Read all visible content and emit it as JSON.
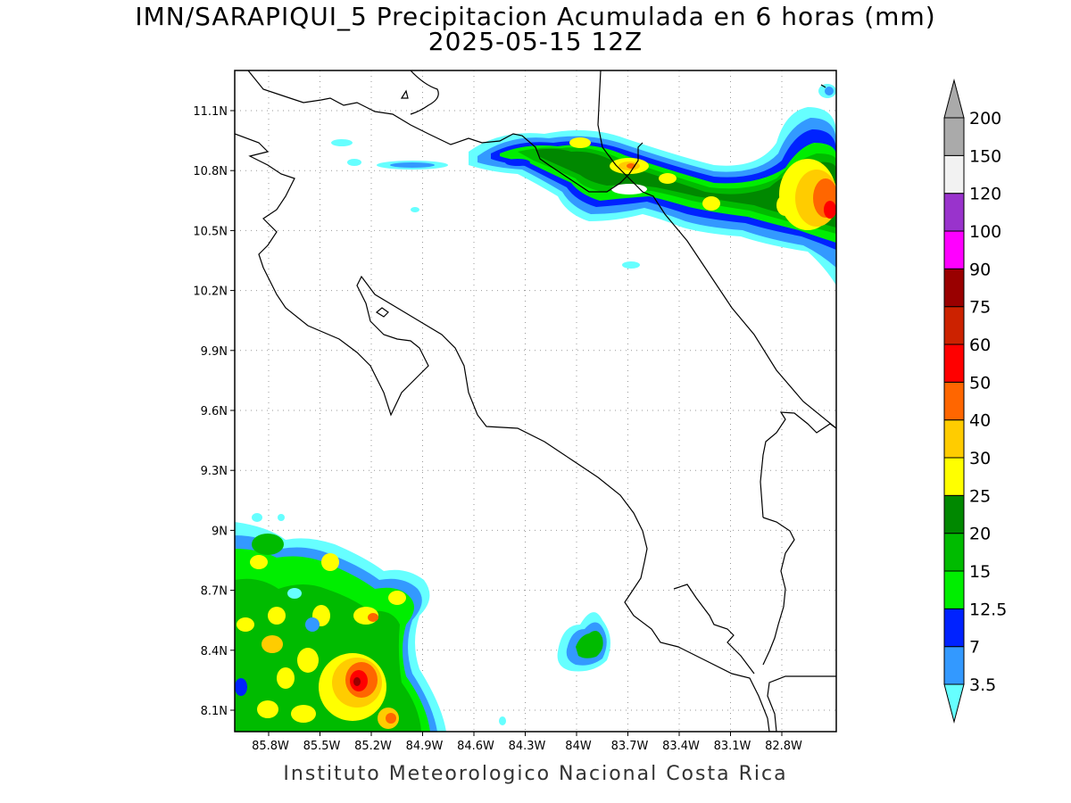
{
  "title": {
    "line1": "IMN/SARAPIQUI_5 Precipitacion Acumulada en 6 horas (mm)",
    "line2": "2025-05-15 12Z"
  },
  "footer": "Instituto Meteorologico Nacional Costa Rica",
  "axes": {
    "lat_ticks": [
      "11.1N",
      "10.8N",
      "10.5N",
      "10.2N",
      "9.9N",
      "9.6N",
      "9.3N",
      "9N",
      "8.7N",
      "8.4N",
      "8.1N"
    ],
    "lon_ticks": [
      "85.8W",
      "85.5W",
      "85.2W",
      "84.9W",
      "84.6W",
      "84.3W",
      "84W",
      "83.7W",
      "83.4W",
      "83.1W",
      "82.8W"
    ]
  },
  "colorbar": {
    "levels": [
      {
        "label": "3.5",
        "color": "#66ffff"
      },
      {
        "label": "7",
        "color": "#3399ff"
      },
      {
        "label": "12.5",
        "color": "#0022ff"
      },
      {
        "label": "15",
        "color": "#00ee00"
      },
      {
        "label": "20",
        "color": "#00bb00"
      },
      {
        "label": "25",
        "color": "#008800"
      },
      {
        "label": "30",
        "color": "#ffff00"
      },
      {
        "label": "40",
        "color": "#ffcc00"
      },
      {
        "label": "50",
        "color": "#ff6600"
      },
      {
        "label": "60",
        "color": "#ff0000"
      },
      {
        "label": "75",
        "color": "#cc2200"
      },
      {
        "label": "90",
        "color": "#990000"
      },
      {
        "label": "100",
        "color": "#ff00ff"
      },
      {
        "label": "120",
        "color": "#9933cc"
      },
      {
        "label": "150",
        "color": "#f2f2f2"
      },
      {
        "label": "200",
        "color": "#aaaaaa"
      }
    ]
  }
}
